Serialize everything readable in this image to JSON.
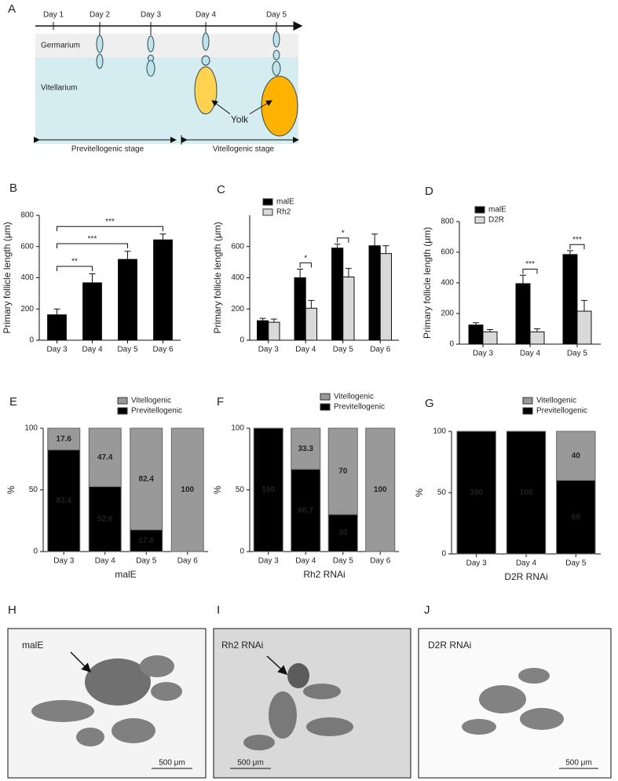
{
  "panel_a": {
    "label": "A",
    "days": [
      "Day 1",
      "Day 2",
      "Day 3",
      "Day 4",
      "Day 5"
    ],
    "regions": [
      "Germarium",
      "Vitellarium"
    ],
    "yolk": "Yolk",
    "stages": [
      "Previtellogenic stage",
      "Vitellogenic stage"
    ]
  },
  "chart_data": [
    {
      "type": "bar",
      "panel": "B",
      "ylabel": "Primary follicle length (μm)",
      "categories": [
        "Day 3",
        "Day 4",
        "Day 5",
        "Day 6"
      ],
      "values": [
        165,
        370,
        520,
        645
      ],
      "errors": [
        35,
        55,
        50,
        35
      ],
      "color": "#000000",
      "ylim": [
        0,
        800
      ],
      "yticks": [
        0,
        200,
        400,
        600,
        800
      ],
      "annotations": [
        {
          "text": "**",
          "x": [
            "Day 3",
            "Day 4"
          ]
        },
        {
          "text": "***",
          "x": [
            "Day 3",
            "Day 5"
          ]
        },
        {
          "text": "***",
          "x": [
            "Day 3",
            "Day 6"
          ]
        }
      ]
    },
    {
      "type": "bar",
      "panel": "C",
      "ylabel": "Primary follicle length (μm)",
      "categories": [
        "Day 3",
        "Day 4",
        "Day 5",
        "Day 6"
      ],
      "series": [
        {
          "name": "malE",
          "color": "#000000",
          "values": [
            125,
            400,
            590,
            605
          ],
          "errors": [
            15,
            55,
            25,
            75
          ]
        },
        {
          "name": "Rh2",
          "color": "#d9d9d9",
          "values": [
            115,
            205,
            405,
            555
          ],
          "errors": [
            20,
            50,
            55,
            50
          ]
        }
      ],
      "ylim": [
        0,
        800
      ],
      "yticks": [
        0,
        200,
        400,
        600
      ],
      "annotations": [
        {
          "text": "*",
          "x": "Day 4"
        },
        {
          "text": "*",
          "x": "Day 5"
        }
      ]
    },
    {
      "type": "bar",
      "panel": "D",
      "ylabel": "Primary follicle length (μm)",
      "categories": [
        "Day 3",
        "Day 4",
        "Day 5"
      ],
      "series": [
        {
          "name": "malE",
          "color": "#000000",
          "values": [
            125,
            395,
            585
          ],
          "errors": [
            15,
            55,
            25
          ]
        },
        {
          "name": "D2R",
          "color": "#d9d9d9",
          "values": [
            80,
            80,
            215
          ],
          "errors": [
            15,
            20,
            70
          ]
        }
      ],
      "ylim": [
        0,
        800
      ],
      "yticks": [
        0,
        200,
        400,
        600,
        800
      ],
      "annotations": [
        {
          "text": "***",
          "x": "Day 4"
        },
        {
          "text": "***",
          "x": "Day 5"
        }
      ]
    },
    {
      "type": "stacked_bar",
      "panel": "E",
      "ylabel": "%",
      "xlabel": "malE",
      "categories": [
        "Day 3",
        "Day 4",
        "Day 5",
        "Day 6"
      ],
      "series": [
        {
          "name": "Previtellogenic",
          "color": "#000000",
          "values": [
            82.4,
            52.6,
            17.6,
            0
          ]
        },
        {
          "name": "Vitellogenic",
          "color": "#999999",
          "values": [
            17.6,
            47.4,
            82.4,
            100
          ]
        }
      ],
      "ylim": [
        0,
        100
      ],
      "yticks": [
        0,
        50,
        100
      ]
    },
    {
      "type": "stacked_bar",
      "panel": "F",
      "ylabel": "%",
      "xlabel": "Rh2 RNAi",
      "categories": [
        "Day 3",
        "Day 4",
        "Day 5",
        "Day 6"
      ],
      "series": [
        {
          "name": "Previtellogenic",
          "color": "#000000",
          "values": [
            100,
            66.7,
            30,
            0
          ]
        },
        {
          "name": "Vitellogenic",
          "color": "#999999",
          "values": [
            0,
            33.3,
            70,
            100
          ]
        }
      ],
      "ylim": [
        0,
        100
      ],
      "yticks": [
        0,
        50,
        100
      ]
    },
    {
      "type": "stacked_bar",
      "panel": "G",
      "ylabel": "%",
      "xlabel": "D2R RNAi",
      "categories": [
        "Day 3",
        "Day 4",
        "Day 5"
      ],
      "series": [
        {
          "name": "Previtellogenic",
          "color": "#000000",
          "values": [
            100,
            100,
            60
          ]
        },
        {
          "name": "Vitellogenic",
          "color": "#999999",
          "values": [
            0,
            0,
            40
          ]
        }
      ],
      "ylim": [
        0,
        100
      ],
      "yticks": [
        0,
        50,
        100
      ]
    }
  ],
  "micrographs": [
    {
      "label": "H",
      "caption": "malE",
      "scale": "500 μm"
    },
    {
      "label": "I",
      "caption": "Rh2 RNAi",
      "scale": "500 μm"
    },
    {
      "label": "J",
      "caption": "D2R RNAi",
      "scale": "500 μm"
    }
  ]
}
